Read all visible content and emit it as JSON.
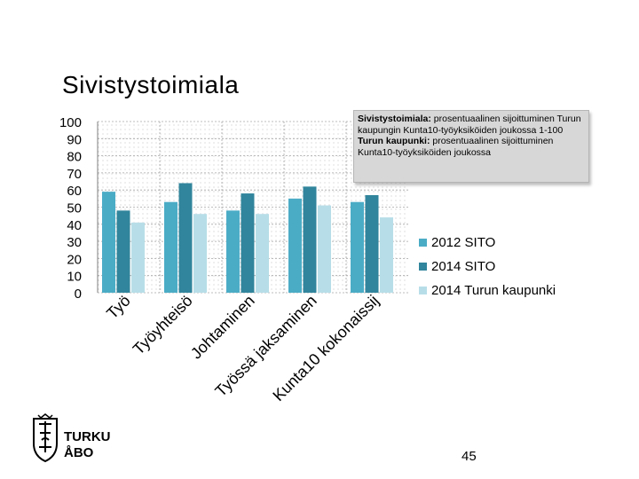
{
  "slide": {
    "title": "Sivistystoimiala",
    "page_number": "45",
    "logo_line1": "TURKU",
    "logo_line2": "ÅBO"
  },
  "note": {
    "line1_bold": "Sivistystoimiala:",
    "line1_rest": " prosentuaalinen sijoittuminen Turun kaupungin Kunta10-työyksiköiden joukossa 1-100",
    "line2_bold": "Turun kaupunki:",
    "line2_rest": " prosentuaalinen sijoittuminen Kunta10-työyksiköiden joukossa"
  },
  "colors": {
    "series_2012": "#4bacc6",
    "series_2014": "#31859c",
    "series_city": "#b7dee8",
    "grid": "#a6a6a6"
  },
  "chart_data": {
    "type": "bar",
    "categories": [
      "Työ",
      "Työyhteisö",
      "Johtaminen",
      "Työssä jaksaminen",
      "Kunta10 kokonaissij"
    ],
    "series": [
      {
        "name": "2012 SITO",
        "values": [
          59,
          53,
          48,
          55,
          53
        ]
      },
      {
        "name": "2014 SITO",
        "values": [
          48,
          64,
          58,
          62,
          57
        ]
      },
      {
        "name": "2014 Turun kaupunki",
        "values": [
          41,
          46,
          46,
          51,
          44
        ]
      }
    ],
    "yticks": [
      "100",
      "90",
      "80",
      "70",
      "60",
      "50",
      "40",
      "30",
      "20",
      "10",
      "0"
    ],
    "ylim": [
      0,
      100
    ],
    "grid": true,
    "legend_position": "right"
  }
}
